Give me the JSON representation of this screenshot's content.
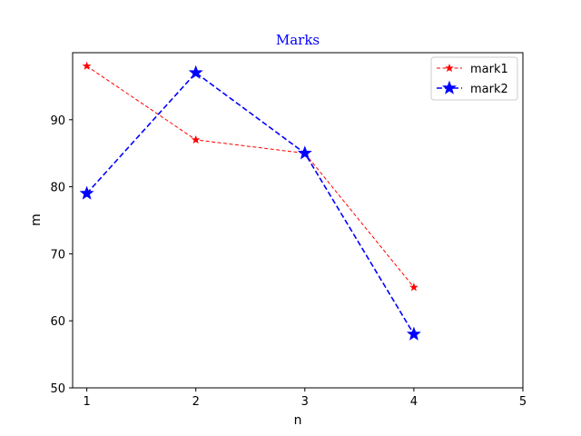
{
  "chart_data": {
    "type": "line",
    "title": "Marks",
    "title_color": "#0000ff",
    "xlabel": "n",
    "ylabel": "m",
    "xlim": [
      0.87,
      5
    ],
    "ylim": [
      50,
      100
    ],
    "xticks": [
      "1",
      "2",
      "3",
      "4",
      "5"
    ],
    "yticks": [
      "50",
      "60",
      "70",
      "80",
      "90"
    ],
    "grid": false,
    "legend_position": "top-right",
    "x": [
      1,
      2,
      3,
      4
    ],
    "series": [
      {
        "name": "mark1",
        "values": [
          98,
          87,
          85,
          65
        ],
        "color": "#ff0000",
        "line_style": "dashed",
        "marker": "star",
        "marker_size": "small"
      },
      {
        "name": "mark2",
        "values": [
          79,
          97,
          85,
          58
        ],
        "color": "#0000ff",
        "line_style": "dashed",
        "marker": "star",
        "marker_size": "large"
      }
    ]
  }
}
